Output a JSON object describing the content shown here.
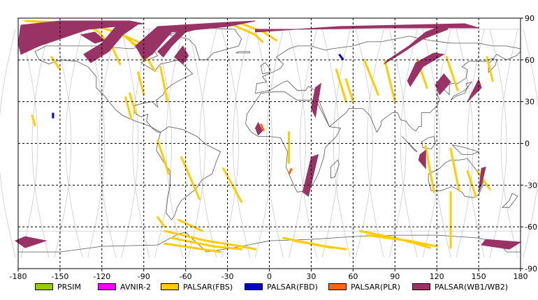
{
  "chart_data": {
    "type": "map",
    "projection": "equirectangular",
    "grid": true,
    "xlim": [
      -180,
      180
    ],
    "ylim": [
      -90,
      90
    ],
    "x_ticks": [
      -180,
      -150,
      -120,
      -90,
      -60,
      -30,
      0,
      30,
      60,
      90,
      120,
      150,
      180
    ],
    "y_ticks": [
      90,
      60,
      30,
      0,
      -30,
      -60,
      -90
    ],
    "legend": [
      {
        "label": "PRSIM",
        "color": "#99cc00"
      },
      {
        "label": "AVNIR-2",
        "color": "#ff00ff"
      },
      {
        "label": "PALSAR(FBS)",
        "color": "#ffcc00"
      },
      {
        "label": "PALSAR(FBD)",
        "color": "#0000cc"
      },
      {
        "label": "PALSAR(PLR)",
        "color": "#ff6600"
      },
      {
        "label": "PALSAR(WB1/WB2)",
        "color": "#993366"
      }
    ],
    "swaths": {
      "wb": [
        [
          [
            -180,
            72
          ],
          [
            -178,
            85
          ],
          [
            -150,
            88
          ],
          [
            -100,
            88
          ],
          [
            -90,
            86
          ],
          [
            -130,
            82
          ],
          [
            -165,
            70
          ],
          [
            -178,
            64
          ]
        ],
        [
          [
            -120,
            72
          ],
          [
            -110,
            84
          ],
          [
            -95,
            85
          ],
          [
            -105,
            78
          ],
          [
            -115,
            66
          ],
          [
            -128,
            58
          ],
          [
            -133,
            64
          ]
        ],
        [
          [
            -96,
            70
          ],
          [
            -80,
            84
          ],
          [
            -30,
            87
          ],
          [
            -10,
            88
          ],
          [
            -30,
            84
          ],
          [
            -70,
            80
          ],
          [
            -84,
            64
          ],
          [
            -90,
            60
          ]
        ],
        [
          [
            -80,
            66
          ],
          [
            -64,
            82
          ],
          [
            -40,
            85
          ],
          [
            -60,
            80
          ],
          [
            -70,
            70
          ],
          [
            -76,
            62
          ]
        ],
        [
          [
            -68,
            62
          ],
          [
            -62,
            70
          ],
          [
            -58,
            63
          ],
          [
            -62,
            57
          ]
        ],
        [
          [
            -10,
            80
          ],
          [
            50,
            84
          ],
          [
            140,
            86
          ],
          [
            150,
            83
          ],
          [
            80,
            83
          ],
          [
            20,
            82
          ],
          [
            -10,
            82
          ]
        ],
        [
          [
            85,
            60
          ],
          [
            100,
            70
          ],
          [
            112,
            80
          ],
          [
            125,
            85
          ],
          [
            128,
            82
          ],
          [
            110,
            75
          ],
          [
            95,
            65
          ],
          [
            82,
            57
          ]
        ],
        [
          [
            99,
            45
          ],
          [
            105,
            58
          ],
          [
            118,
            65
          ],
          [
            125,
            64
          ],
          [
            110,
            55
          ],
          [
            101,
            41
          ]
        ],
        [
          [
            119,
            42
          ],
          [
            125,
            50
          ],
          [
            130,
            44
          ],
          [
            122,
            35
          ]
        ],
        [
          [
            145,
            33
          ],
          [
            152,
            40
          ],
          [
            150,
            46
          ],
          [
            142,
            30
          ]
        ],
        [
          [
            30,
            25
          ],
          [
            33,
            40
          ],
          [
            37,
            43
          ],
          [
            33,
            19
          ]
        ],
        [
          [
            24,
            -35
          ],
          [
            30,
            -10
          ],
          [
            35,
            -8
          ],
          [
            28,
            -38
          ]
        ],
        [
          [
            -5,
            9
          ],
          [
            -8,
            15
          ],
          [
            -10,
            11
          ],
          [
            -8,
            6
          ]
        ],
        [
          [
            108,
            -8
          ],
          [
            112,
            -5
          ],
          [
            112,
            -18
          ],
          [
            107,
            -12
          ]
        ],
        [
          [
            150,
            -35
          ],
          [
            152,
            -18
          ],
          [
            155,
            -17
          ],
          [
            152,
            -30
          ]
        ],
        [
          [
            -182,
            -70
          ],
          [
            -175,
            -67
          ],
          [
            -160,
            -70
          ],
          [
            -175,
            -75
          ]
        ],
        [
          [
            152,
            -73
          ],
          [
            155,
            -69
          ],
          [
            180,
            -71
          ],
          [
            172,
            -76
          ]
        ],
        [
          [
            -135,
            78
          ],
          [
            -125,
            80
          ],
          [
            -118,
            74
          ],
          [
            -125,
            72
          ]
        ]
      ],
      "fbs": [
        [
          [
            -132,
            86
          ],
          [
            -122,
            80
          ],
          [
            -112,
            68
          ],
          [
            -107,
            57
          ]
        ],
        [
          [
            -110,
            82
          ],
          [
            -95,
            70
          ],
          [
            -90,
            60
          ]
        ],
        [
          [
            -98,
            72
          ],
          [
            -88,
            62
          ],
          [
            -82,
            52
          ]
        ],
        [
          [
            -175,
            88
          ],
          [
            -130,
            86
          ],
          [
            -110,
            80
          ],
          [
            -92,
            72
          ]
        ],
        [
          [
            -28,
            86
          ],
          [
            -10,
            78
          ],
          [
            -5,
            73
          ]
        ],
        [
          [
            -20,
            86
          ],
          [
            -4,
            80
          ],
          [
            5,
            74
          ]
        ],
        [
          [
            -75,
            -63
          ],
          [
            -45,
            -70
          ],
          [
            -20,
            -74
          ],
          [
            -10,
            -76
          ]
        ],
        [
          [
            -70,
            -68
          ],
          [
            -40,
            -74
          ],
          [
            -20,
            -76
          ]
        ],
        [
          [
            -75,
            -72
          ],
          [
            -55,
            -75
          ],
          [
            -35,
            -78
          ]
        ],
        [
          [
            -80,
            -53
          ],
          [
            -75,
            -60
          ]
        ],
        [
          [
            -65,
            -55
          ],
          [
            -48,
            -63
          ]
        ],
        [
          [
            65,
            -63
          ],
          [
            90,
            -68
          ],
          [
            105,
            -72
          ],
          [
            115,
            -75
          ]
        ],
        [
          [
            70,
            -66
          ],
          [
            100,
            -70
          ],
          [
            120,
            -74
          ]
        ],
        [
          [
            10,
            -68
          ],
          [
            40,
            -74
          ],
          [
            55,
            -76
          ]
        ],
        [
          [
            18,
            -70
          ],
          [
            45,
            -75
          ]
        ],
        [
          [
            130,
            -35
          ],
          [
            130,
            -75
          ]
        ],
        [
          [
            -170,
            20
          ],
          [
            -168,
            13
          ]
        ],
        [
          [
            -156,
            62
          ],
          [
            -150,
            53
          ]
        ],
        [
          [
            -100,
            36
          ],
          [
            -96,
            22
          ]
        ],
        [
          [
            -103,
            33
          ],
          [
            -99,
            18
          ]
        ],
        [
          [
            -78,
            55
          ],
          [
            -73,
            30
          ]
        ],
        [
          [
            -94,
            51
          ],
          [
            -90,
            35
          ]
        ],
        [
          [
            55,
            46
          ],
          [
            60,
            30
          ]
        ],
        [
          [
            48,
            53
          ],
          [
            55,
            30
          ]
        ],
        [
          [
            68,
            60
          ],
          [
            78,
            35
          ]
        ],
        [
          [
            83,
            59
          ],
          [
            90,
            30
          ]
        ],
        [
          [
            106,
            60
          ],
          [
            113,
            40
          ]
        ],
        [
          [
            127,
            62
          ],
          [
            135,
            38
          ]
        ],
        [
          [
            156,
            62
          ],
          [
            160,
            45
          ]
        ],
        [
          [
            112,
            -2
          ],
          [
            118,
            -35
          ]
        ],
        [
          [
            130,
            -4
          ],
          [
            136,
            -34
          ]
        ],
        [
          [
            142,
            -20
          ],
          [
            148,
            -38
          ]
        ],
        [
          [
            149,
            -20
          ],
          [
            158,
            -33
          ]
        ],
        [
          [
            14,
            8
          ],
          [
            14,
            -14
          ]
        ],
        [
          [
            -63,
            -10
          ],
          [
            -50,
            -40
          ]
        ],
        [
          [
            -80,
            2
          ],
          [
            -72,
            -22
          ]
        ],
        [
          [
            -33,
            -18
          ],
          [
            -20,
            -42
          ]
        ]
      ],
      "fbd": [
        [
          [
            -155,
            22
          ],
          [
            -155,
            18
          ]
        ],
        [
          [
            50,
            64
          ],
          [
            53,
            60
          ]
        ]
      ],
      "plr": [
        [
          [
            -6,
            14
          ],
          [
            -4,
            9
          ]
        ],
        [
          [
            16,
            -18
          ],
          [
            14,
            -22
          ]
        ]
      ]
    }
  }
}
